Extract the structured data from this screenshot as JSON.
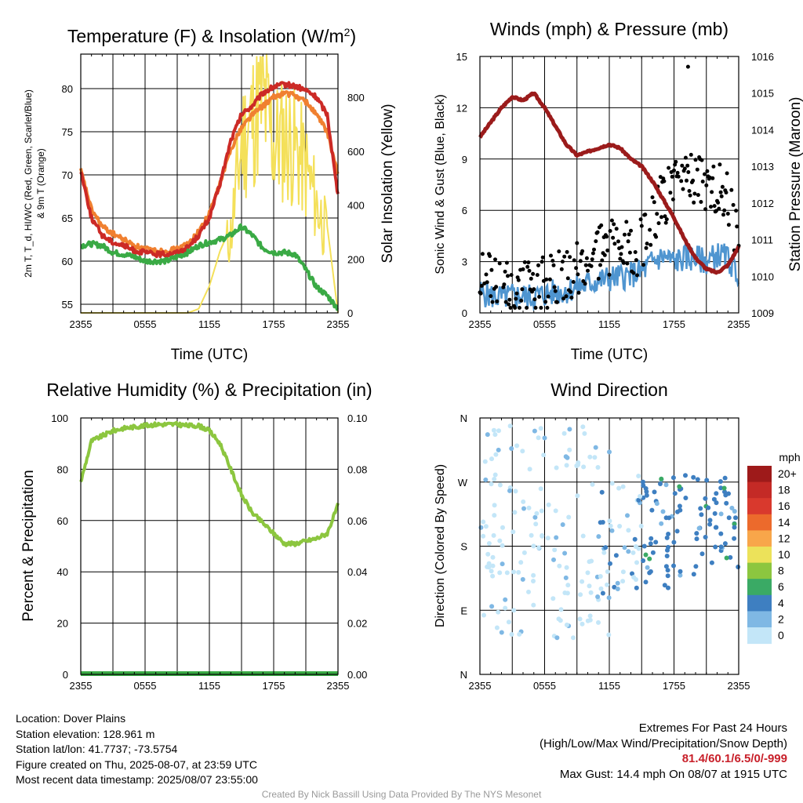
{
  "chart_data": [
    {
      "type": "line",
      "title": "Temperature (F) & Insolation (W/m²)",
      "xlabel": "Time (UTC)",
      "ylabel_left": "2m T, T_d, HI/WC (Red, Green, Scarlet/Blue) & 9m T (Orange)",
      "ylabel_right": "Solar Insolation (Yellow)",
      "x_ticks": [
        "2355",
        "0555",
        "1155",
        "1755",
        "2355"
      ],
      "ylim_left": [
        54,
        84
      ],
      "yticks_left": [
        55,
        60,
        65,
        70,
        75,
        80
      ],
      "ylim_right": [
        0,
        960
      ],
      "yticks_right": [
        0,
        200,
        400,
        600,
        800
      ],
      "x_hours": [
        0,
        1,
        2,
        3,
        4,
        5,
        6,
        7,
        8,
        9,
        10,
        11,
        12,
        13,
        14,
        15,
        16,
        17,
        18,
        19,
        20,
        21,
        22,
        23,
        24
      ],
      "series": [
        {
          "name": "2m T",
          "color": "#cc2a26",
          "axis": "left",
          "values": [
            70.5,
            65,
            63,
            62.2,
            61.8,
            61.2,
            61,
            60.8,
            60.8,
            61,
            61.6,
            63,
            65,
            69,
            74,
            77,
            78,
            79.5,
            80.2,
            80.5,
            80.3,
            79.8,
            79,
            77,
            67.5
          ]
        },
        {
          "name": "9m T",
          "color": "#f08030",
          "axis": "left",
          "values": [
            70.5,
            66,
            64,
            63.2,
            62.5,
            61.8,
            61.4,
            61.2,
            61.2,
            61.4,
            62,
            63.4,
            65.5,
            69,
            73,
            75.5,
            77,
            78,
            79,
            79.5,
            79.2,
            78.5,
            77,
            75,
            70
          ]
        },
        {
          "name": "T_d",
          "color": "#3aaa45",
          "axis": "left",
          "values": [
            61.8,
            62,
            61.8,
            61,
            60.8,
            60.5,
            60,
            60,
            60,
            60.5,
            61,
            61.8,
            62.2,
            62.5,
            63,
            64,
            63,
            61.5,
            61,
            61,
            60.8,
            59,
            57,
            56,
            54.5
          ]
        },
        {
          "name": "Insolation",
          "color": "#f4e05a",
          "axis": "right",
          "values": [
            0,
            0,
            0,
            0,
            0,
            0,
            0,
            0,
            0,
            0,
            0,
            15,
            100,
            230,
            320,
            700,
            800,
            880,
            700,
            720,
            680,
            590,
            450,
            320,
            0
          ]
        }
      ]
    },
    {
      "type": "scatter",
      "title": "Winds (mph) & Pressure (mb)",
      "xlabel": "Time (UTC)",
      "ylabel_left": "Sonic Wind & Gust (Blue, Black)",
      "ylabel_right": "Station Pressure (Maroon)",
      "x_ticks": [
        "2355",
        "0555",
        "1155",
        "1755",
        "2355"
      ],
      "ylim_left": [
        0,
        15
      ],
      "yticks_left": [
        0,
        3,
        6,
        9,
        12,
        15
      ],
      "ylim_right": [
        1009,
        1016
      ],
      "yticks_right": [
        1009,
        1010,
        1011,
        1012,
        1013,
        1014,
        1015,
        1016
      ],
      "x_hours": [
        0,
        1,
        2,
        3,
        4,
        5,
        6,
        7,
        8,
        9,
        10,
        11,
        12,
        13,
        14,
        15,
        16,
        17,
        18,
        19,
        20,
        21,
        22,
        23,
        24
      ],
      "series": [
        {
          "name": "Wind",
          "color": "#4f95d0",
          "axis": "left",
          "values": [
            1.2,
            1.0,
            0.9,
            1.0,
            1.0,
            0.9,
            1.1,
            1.2,
            1.3,
            1.5,
            1.7,
            1.9,
            2.0,
            2.1,
            2.2,
            2.4,
            3.0,
            3.3,
            3.0,
            3.2,
            3.2,
            3.0,
            3.4,
            3.2,
            2.2
          ]
        },
        {
          "name": "Gust",
          "color": "#000000",
          "axis": "left",
          "values": [
            2.0,
            1.7,
            1.6,
            1.7,
            1.6,
            1.4,
            1.8,
            2.0,
            2.4,
            2.6,
            3.2,
            3.4,
            3.8,
            4.0,
            3.4,
            4.2,
            5.6,
            6.8,
            7.2,
            7.5,
            7.8,
            7.0,
            7.6,
            6.6,
            4.0
          ]
        },
        {
          "name": "Pressure",
          "color": "#9b1b1b",
          "axis": "right",
          "values": [
            1013.8,
            1014.2,
            1014.6,
            1014.9,
            1014.8,
            1015.0,
            1014.6,
            1014.1,
            1013.6,
            1013.3,
            1013.4,
            1013.5,
            1013.6,
            1013.5,
            1013.2,
            1013.0,
            1012.6,
            1012.1,
            1011.6,
            1011.0,
            1010.5,
            1010.2,
            1010.1,
            1010.3,
            1010.8
          ]
        }
      ]
    },
    {
      "type": "line",
      "title": "Relative Humidity (%) & Precipitation (in)",
      "xlabel": "",
      "ylabel_left": "Percent & Precipitation",
      "x_ticks": [
        "2355",
        "0555",
        "1155",
        "1755",
        "2355"
      ],
      "ylim_left": [
        0,
        100
      ],
      "yticks_left": [
        0,
        20,
        40,
        60,
        80,
        100
      ],
      "ylim_right": [
        0,
        0.1
      ],
      "yticks_right": [
        "0.00",
        "0.02",
        "0.04",
        "0.06",
        "0.08",
        "0.10"
      ],
      "x_hours": [
        0,
        1,
        2,
        3,
        4,
        5,
        6,
        7,
        8,
        9,
        10,
        11,
        12,
        13,
        14,
        15,
        16,
        17,
        18,
        19,
        20,
        21,
        22,
        23,
        24
      ],
      "series": [
        {
          "name": "RH",
          "color": "#8cc63f",
          "axis": "left",
          "values": [
            75,
            91,
            93,
            95,
            96,
            96.5,
            97,
            97.5,
            97.5,
            97.5,
            97,
            97,
            95,
            90,
            80,
            70,
            63,
            59,
            55,
            51,
            51,
            52,
            53,
            55,
            66
          ]
        },
        {
          "name": "Precip",
          "color": "#3aaa45",
          "axis": "right",
          "values": [
            0,
            0,
            0,
            0,
            0,
            0,
            0,
            0,
            0,
            0,
            0,
            0,
            0,
            0,
            0,
            0,
            0,
            0,
            0,
            0,
            0,
            0,
            0,
            0,
            0
          ]
        }
      ]
    },
    {
      "type": "scatter",
      "title": "Wind Direction",
      "ylabel": "Direction (Colored By Speed)",
      "x_ticks": [
        "2355",
        "0555",
        "1155",
        "1755",
        "2355"
      ],
      "y_ticks": [
        "N",
        "E",
        "S",
        "W",
        "N"
      ],
      "ylim": [
        0,
        360
      ],
      "legend_title": "mph",
      "legend_labels": [
        "20+",
        "18",
        "16",
        "14",
        "12",
        "10",
        "8",
        "6",
        "4",
        "2",
        "0"
      ],
      "legend_colors": [
        "#9e1a1a",
        "#c42a26",
        "#d9392d",
        "#ec6a2c",
        "#f8a64a",
        "#ece25a",
        "#8cc63f",
        "#3aaa65",
        "#3e7fc1",
        "#7fb8e4",
        "#c3e6f8"
      ]
    }
  ],
  "info": {
    "location": "Location: Dover Plains",
    "elevation": "Station elevation: 128.961 m",
    "latlon": "Station lat/lon: 41.7737; -73.5754",
    "created": "Figure created on Thu, 2025-08-07, at 23:59 UTC",
    "recent": "Most recent data timestamp: 2025/08/07 23:55:00"
  },
  "extremes": {
    "heading": "Extremes For Past 24 Hours",
    "subheading": "(High/Low/Max Wind/Precipitation/Snow Depth)",
    "values": "81.4/60.1/6.5/0/-999",
    "gust": "Max Gust: 14.4 mph On 08/07 at 1915 UTC"
  },
  "credit": "Created By Nick Bassill Using Data Provided By The NYS Mesonet"
}
